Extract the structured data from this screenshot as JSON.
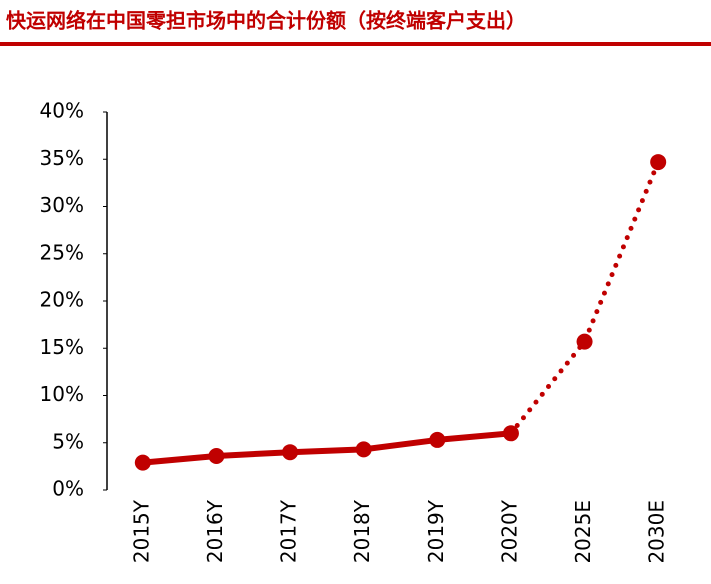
{
  "chart_data": {
    "type": "line",
    "title": "快运网络在中国零担市场中的合计份额（按终端客户支出）",
    "categories": [
      "2015Y",
      "2016Y",
      "2017Y",
      "2018Y",
      "2019Y",
      "2020Y",
      "2025E",
      "2030E"
    ],
    "values": [
      2.9,
      3.6,
      4.0,
      4.3,
      5.3,
      6.0,
      15.7,
      34.7
    ],
    "color": "#c00000",
    "dotted_after": "2020Y",
    "ylim": [
      0,
      40
    ],
    "yticks": [
      {
        "value": 0,
        "label": "0%"
      },
      {
        "value": 5,
        "label": "5%"
      },
      {
        "value": 10,
        "label": "10%"
      },
      {
        "value": 15,
        "label": "15%"
      },
      {
        "value": 20,
        "label": "20%"
      },
      {
        "value": 25,
        "label": "25%"
      },
      {
        "value": 30,
        "label": "30%"
      },
      {
        "value": 35,
        "label": "35%"
      },
      {
        "value": 40,
        "label": "40%"
      }
    ]
  }
}
